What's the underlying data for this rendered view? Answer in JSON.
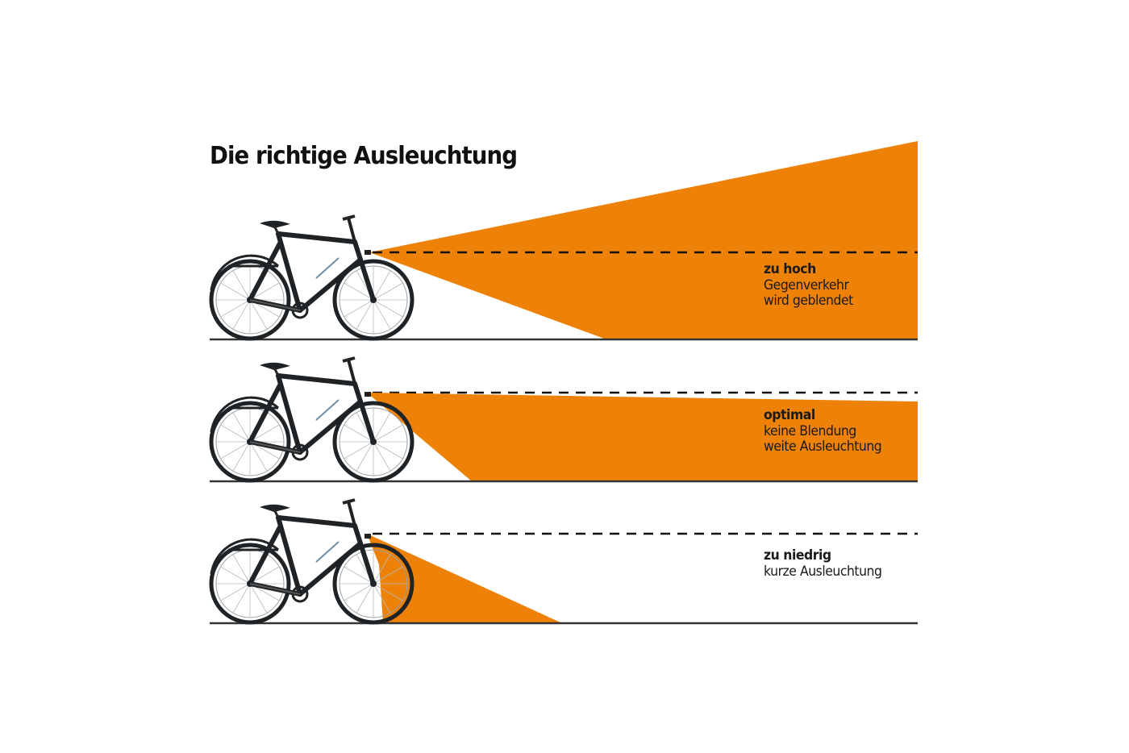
{
  "title": "Die richtige Ausleuchtung",
  "colors": {
    "beam": "#ee8208",
    "ground": "#333333",
    "bike": "#1f2326",
    "bike_accent": "#6f8fa6"
  },
  "panels": [
    {
      "state": "zu hoch",
      "lines": [
        "Gegenverkehr",
        "wird geblendet"
      ]
    },
    {
      "state": "optimal",
      "lines": [
        "keine Blendung",
        "weite Ausleuchtung"
      ]
    },
    {
      "state": "zu niedrig",
      "lines": [
        "kurze Ausleuchtung"
      ]
    }
  ]
}
